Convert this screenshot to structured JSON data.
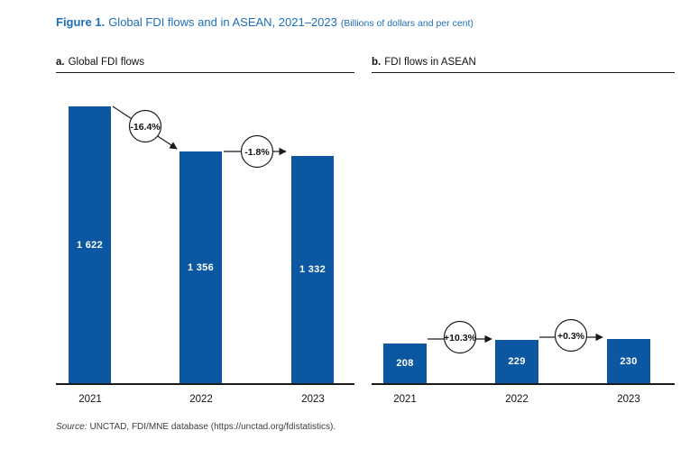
{
  "figure": {
    "label": "Figure 1.",
    "title": "Global FDI flows and in ASEAN, 2021–2023",
    "note": "(Billions of dollars and per cent)"
  },
  "source": {
    "prefix": "Source:",
    "text": "UNCTAD, FDI/MNE database (https://unctad.org/fdistatistics)."
  },
  "colors": {
    "bar": "#0b57a2",
    "title": "#1e6fb8",
    "axis": "#1a1a1a"
  },
  "chart_data": [
    {
      "type": "bar",
      "panel_label": "a.",
      "panel_title": "Global FDI flows",
      "unit": "Billions of dollars",
      "categories": [
        "2021",
        "2022",
        "2023"
      ],
      "values": [
        1622,
        1356,
        1332
      ],
      "value_labels": [
        "1 622",
        "1 356",
        "1 332"
      ],
      "ylim": [
        0,
        1700
      ],
      "grid": false,
      "legend": "none",
      "annotations": [
        {
          "text": "-16.4%",
          "from": "2021",
          "to": "2022",
          "shape": "circle-with-arrow"
        },
        {
          "text": "-1.8%",
          "from": "2022",
          "to": "2023",
          "shape": "circle-with-arrow"
        }
      ]
    },
    {
      "type": "bar",
      "panel_label": "b.",
      "panel_title": "FDI flows in ASEAN",
      "unit": "Billions of dollars",
      "categories": [
        "2021",
        "2022",
        "2023"
      ],
      "values": [
        208,
        229,
        230
      ],
      "value_labels": [
        "208",
        "229",
        "230"
      ],
      "ylim": [
        0,
        1700
      ],
      "grid": false,
      "legend": "none",
      "annotations": [
        {
          "text": "+10.3%",
          "from": "2021",
          "to": "2022",
          "shape": "circle-with-arrow"
        },
        {
          "text": "+0.3%",
          "from": "2022",
          "to": "2023",
          "shape": "circle-with-arrow"
        }
      ]
    }
  ]
}
